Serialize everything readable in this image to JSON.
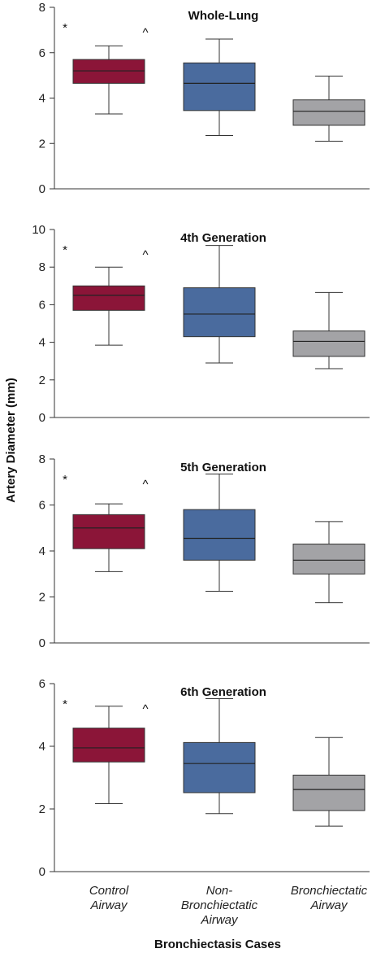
{
  "chart_data": {
    "type": "box",
    "ylabel": "Artery Diameter (mm)",
    "xlabel": "Bronchiectasis Cases",
    "categories": [
      [
        "Control",
        "Airway"
      ],
      [
        "Non-",
        "Bronchiectatic",
        "Airway"
      ],
      [
        "Bronchiectatic",
        "Airway"
      ]
    ],
    "colors": [
      "#8b1538",
      "#4a6b9e",
      "#a3a3a6"
    ],
    "significance_markers": [
      "*",
      "^"
    ],
    "panels": [
      {
        "title": "Whole-Lung",
        "ylim": [
          0,
          8
        ],
        "yticks": [
          0,
          2,
          4,
          6,
          8
        ],
        "boxes": [
          {
            "min": 3.3,
            "q1": 4.65,
            "median": 5.2,
            "q3": 5.7,
            "max": 6.3
          },
          {
            "min": 2.35,
            "q1": 3.45,
            "median": 4.65,
            "q3": 5.55,
            "max": 6.6
          },
          {
            "min": 2.1,
            "q1": 2.8,
            "median": 3.42,
            "q3": 3.92,
            "max": 4.97
          }
        ]
      },
      {
        "title": "4th Generation",
        "ylim": [
          0,
          10
        ],
        "yticks": [
          0,
          2,
          4,
          6,
          8,
          10
        ],
        "boxes": [
          {
            "min": 3.85,
            "q1": 5.7,
            "median": 6.5,
            "q3": 7.0,
            "max": 8.0
          },
          {
            "min": 2.9,
            "q1": 4.3,
            "median": 5.5,
            "q3": 6.9,
            "max": 9.15
          },
          {
            "min": 2.6,
            "q1": 3.25,
            "median": 4.05,
            "q3": 4.6,
            "max": 6.65
          }
        ]
      },
      {
        "title": "5th Generation",
        "ylim": [
          0,
          8
        ],
        "yticks": [
          0,
          2,
          4,
          6,
          8
        ],
        "boxes": [
          {
            "min": 3.1,
            "q1": 4.1,
            "median": 5.0,
            "q3": 5.58,
            "max": 6.05
          },
          {
            "min": 2.25,
            "q1": 3.6,
            "median": 4.55,
            "q3": 5.8,
            "max": 7.35
          },
          {
            "min": 1.75,
            "q1": 3.0,
            "median": 3.6,
            "q3": 4.3,
            "max": 5.28
          }
        ]
      },
      {
        "title": "6th Generation",
        "ylim": [
          0,
          6
        ],
        "yticks": [
          0,
          2,
          4,
          6
        ],
        "boxes": [
          {
            "min": 2.17,
            "q1": 3.5,
            "median": 3.95,
            "q3": 4.58,
            "max": 5.28
          },
          {
            "min": 1.85,
            "q1": 2.52,
            "median": 3.45,
            "q3": 4.12,
            "max": 5.52
          },
          {
            "min": 1.45,
            "q1": 1.95,
            "median": 2.62,
            "q3": 3.08,
            "max": 4.28
          }
        ]
      }
    ]
  }
}
